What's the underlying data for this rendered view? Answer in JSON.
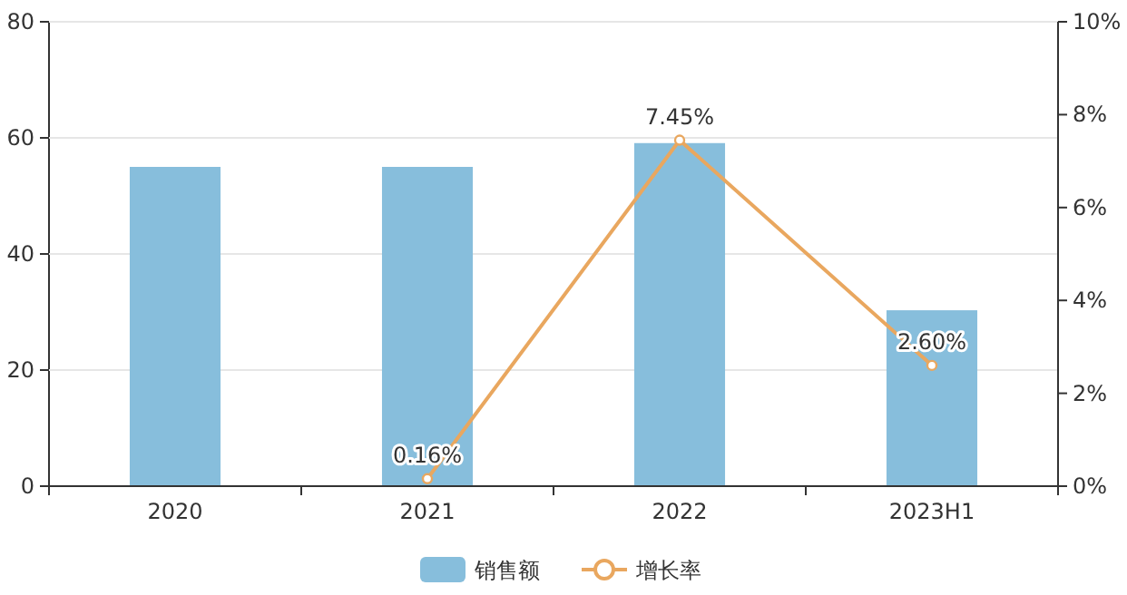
{
  "chart_data": {
    "type": "bar",
    "categories": [
      "2020",
      "2021",
      "2022",
      "2023H1"
    ],
    "series": [
      {
        "name": "销售额",
        "color": "#87bedc",
        "values": [
          55.0,
          55.0,
          59.1,
          30.3
        ]
      },
      {
        "name": "增长率",
        "type": "line",
        "axis": "y2",
        "color": "#e9a75f",
        "marker": "circle",
        "values": [
          null,
          0.16,
          7.45,
          2.6
        ],
        "value_labels": [
          null,
          "0.16%",
          "7.45%",
          "2.60%"
        ]
      }
    ],
    "ylim": [
      0,
      80
    ],
    "yticks": [
      0,
      20,
      40,
      60,
      80
    ],
    "y2lim": [
      0,
      10
    ],
    "y2ticks": [
      {
        "value": 0,
        "label": "0%"
      },
      {
        "value": 2,
        "label": "2%"
      },
      {
        "value": 4,
        "label": "4%"
      },
      {
        "value": 6,
        "label": "6%"
      },
      {
        "value": 8,
        "label": "8%"
      },
      {
        "value": 10,
        "label": "10%"
      }
    ],
    "grid": "y",
    "legend": "bottom"
  }
}
